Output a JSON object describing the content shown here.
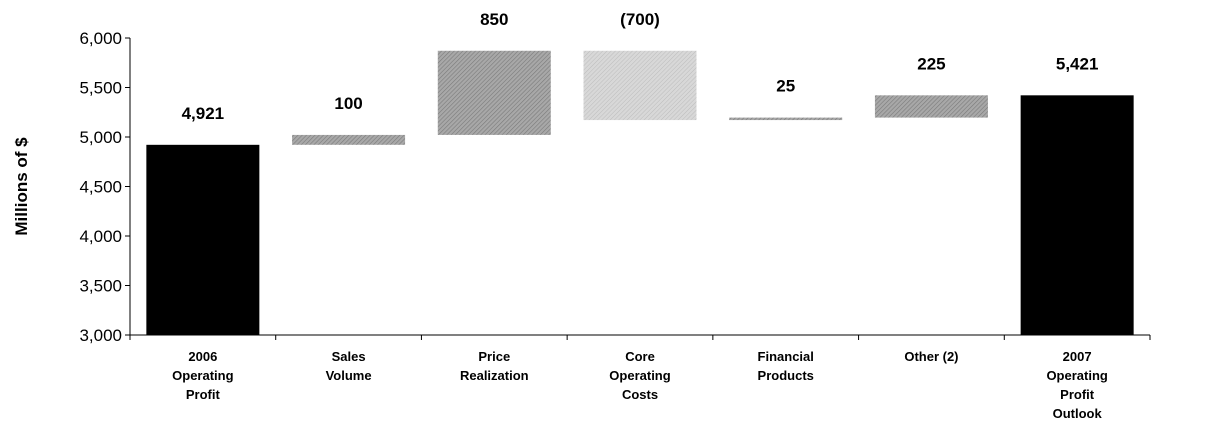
{
  "chart_data": {
    "type": "bar",
    "subtype": "waterfall",
    "ylabel": "Millions of $",
    "ylim": [
      3000,
      6000
    ],
    "yticks": [
      "3,000",
      "3,500",
      "4,000",
      "4,500",
      "5,000",
      "5,500",
      "6,000"
    ],
    "ytick_values": [
      3000,
      3500,
      4000,
      4500,
      5000,
      5500,
      6000
    ],
    "grid": false,
    "categories": [
      [
        "2006",
        "Operating",
        "Profit"
      ],
      [
        "Sales",
        "Volume"
      ],
      [
        "Price",
        "Realization"
      ],
      [
        "Core",
        "Operating",
        "Costs"
      ],
      [
        "Financial",
        "Products"
      ],
      [
        "Other (2)"
      ],
      [
        "2007",
        "Operating",
        "Profit",
        "Outlook"
      ]
    ],
    "bars": [
      {
        "kind": "total",
        "start": 3000,
        "end": 4921,
        "label": "4,921",
        "color": "#000000"
      },
      {
        "kind": "increase",
        "start": 4921,
        "end": 5021,
        "label": "100",
        "color": "#9a9a9a"
      },
      {
        "kind": "increase",
        "start": 5021,
        "end": 5871,
        "label": "850",
        "color": "#9a9a9a"
      },
      {
        "kind": "decrease",
        "start": 5871,
        "end": 5171,
        "label": "(700)",
        "color": "#cfcfcf"
      },
      {
        "kind": "increase",
        "start": 5171,
        "end": 5196,
        "label": "25",
        "color": "#9a9a9a"
      },
      {
        "kind": "increase",
        "start": 5196,
        "end": 5421,
        "label": "225",
        "color": "#9a9a9a"
      },
      {
        "kind": "total",
        "start": 3000,
        "end": 5421,
        "label": "5,421",
        "color": "#000000"
      }
    ]
  }
}
